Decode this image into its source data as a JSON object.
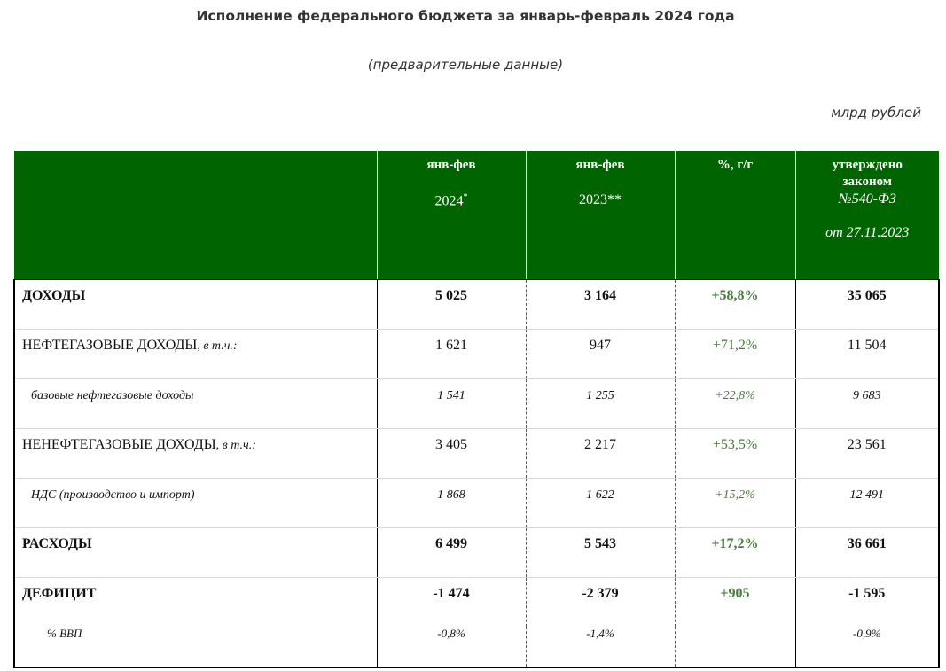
{
  "title": "Исполнение федерального бюджета за январь-февраль 2024 года",
  "subtitle": "(предварительные данные)",
  "units": "млрд рублей",
  "header": {
    "col1_line1": "янв-фев",
    "col1_line2": "2024",
    "col1_mark": "*",
    "col2_line1": "янв-фев",
    "col2_line2": "2023**",
    "col3": "%, г/г",
    "col4_line1": "утверждено",
    "col4_line2": "законом",
    "col4_line3": "№540-ФЗ",
    "col4_line4": "от 27.11.2023"
  },
  "rows": [
    {
      "label": "ДОХОДЫ",
      "suffix": "",
      "v2024": "5 025",
      "v2023": "3 164",
      "pct": "+58,8%",
      "law": "35 065"
    },
    {
      "label": "НЕФТЕГАЗОВЫЕ ДОХОДЫ",
      "suffix": ", в т.ч.:",
      "v2024": "1 621",
      "v2023": "947",
      "pct": "+71,2%",
      "law": "11 504"
    },
    {
      "label": "базовые нефтегазовые доходы",
      "suffix": "",
      "v2024": "1 541",
      "v2023": "1 255",
      "pct": "+22,8%",
      "law": "9 683"
    },
    {
      "label": "НЕНЕФТЕГАЗОВЫЕ ДОХОДЫ",
      "suffix": ", в т.ч.:",
      "v2024": "3 405",
      "v2023": "2 217",
      "pct": "+53,5%",
      "law": "23 561"
    },
    {
      "label": "НДС (производство и импорт)",
      "suffix": "",
      "v2024": "1 868",
      "v2023": "1 622",
      "pct": "+15,2%",
      "law": "12 491"
    },
    {
      "label": "РАСХОДЫ",
      "suffix": "",
      "v2024": "6 499",
      "v2023": "5 543",
      "pct": "+17,2%",
      "law": "36 661"
    },
    {
      "label": "ДЕФИЦИТ",
      "suffix": "",
      "v2024": "-1 474",
      "v2023": "-2 379",
      "pct": "+905",
      "law": "-1 595"
    },
    {
      "label": "% ВВП",
      "suffix": "",
      "v2024": "-0,8%",
      "v2023": "-1,4%",
      "pct": "",
      "law": "-0,9%"
    }
  ]
}
